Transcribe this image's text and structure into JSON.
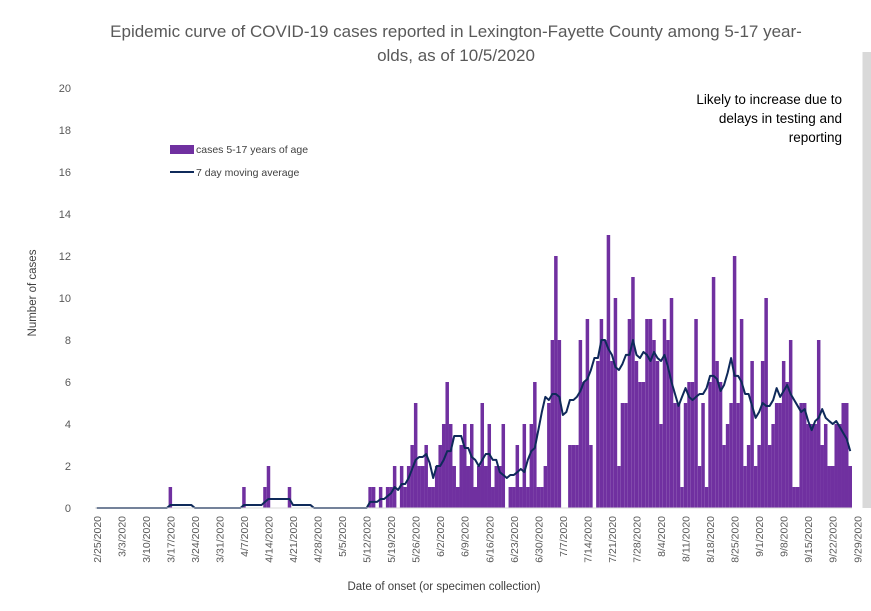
{
  "chart_data": {
    "type": "bar",
    "title_lines": [
      "Epidemic curve of COVID-19 cases reported in Lexington-Fayette County among 5-17 year-",
      "olds, as of 10/5/2020"
    ],
    "xlabel": "Date of onset (or specimen collection)",
    "ylabel": "Number of cases",
    "ylim": [
      0,
      20
    ],
    "yticks": [
      0,
      2,
      4,
      6,
      8,
      10,
      12,
      14,
      16,
      18,
      20
    ],
    "x_tick_labels": [
      "2/25/2020",
      "3/3/2020",
      "3/10/2020",
      "3/17/2020",
      "3/24/2020",
      "3/31/2020",
      "4/7/2020",
      "4/14/2020",
      "4/21/2020",
      "4/28/2020",
      "5/5/2020",
      "5/12/2020",
      "5/19/2020",
      "5/26/2020",
      "6/2/2020",
      "6/9/2020",
      "6/16/2020",
      "6/23/2020",
      "6/30/2020",
      "7/7/2020",
      "7/14/2020",
      "7/21/2020",
      "7/28/2020",
      "8/4/2020",
      "8/11/2020",
      "8/18/2020",
      "8/25/2020",
      "9/1/2020",
      "9/8/2020",
      "9/15/2020",
      "9/22/2020",
      "9/29/2020"
    ],
    "start_date": "2/25/2020",
    "grid": false,
    "legend_position": "upper-left",
    "colors": {
      "bars": "#7030a0",
      "line": "#0f2a5a",
      "shade": "#d9d9d9"
    },
    "shaded_region": {
      "from": "10/1/2020",
      "to": "10/5/2020"
    },
    "annotation": [
      "Likely to increase due to",
      "delays in testing and",
      "reporting"
    ],
    "series": [
      {
        "name": "cases 5-17 years of age",
        "kind": "bar",
        "values": [
          0,
          0,
          0,
          0,
          0,
          0,
          0,
          0,
          0,
          0,
          0,
          0,
          0,
          0,
          0,
          0,
          0,
          0,
          0,
          0,
          0,
          1,
          0,
          0,
          0,
          0,
          0,
          0,
          0,
          0,
          0,
          0,
          0,
          0,
          0,
          0,
          0,
          0,
          0,
          0,
          0,
          0,
          1,
          0,
          0,
          0,
          0,
          0,
          1,
          2,
          0,
          0,
          0,
          0,
          0,
          1,
          0,
          0,
          0,
          0,
          0,
          0,
          0,
          0,
          0,
          0,
          0,
          0,
          0,
          0,
          0,
          0,
          0,
          0,
          0,
          0,
          0,
          0,
          1,
          1,
          0,
          1,
          0,
          1,
          1,
          2,
          0,
          2,
          1,
          2,
          3,
          5,
          2,
          2,
          3,
          1,
          1,
          2,
          3,
          4,
          6,
          4,
          2,
          1,
          3,
          4,
          2,
          4,
          1,
          2,
          5,
          2,
          4,
          1,
          2,
          2,
          4,
          0,
          1,
          1,
          3,
          1,
          4,
          1,
          4,
          6,
          1,
          1,
          2,
          5,
          8,
          12,
          8,
          0,
          0,
          3,
          3,
          3,
          8,
          6,
          9,
          3,
          0,
          7,
          9,
          8,
          13,
          7,
          10,
          2,
          5,
          5,
          9,
          11,
          7,
          6,
          6,
          9,
          9,
          8,
          7,
          4,
          9,
          8,
          10,
          5,
          5,
          1,
          5,
          6,
          6,
          9,
          2,
          5,
          1,
          6,
          11,
          7,
          6,
          3,
          4,
          5,
          12,
          5,
          9,
          2,
          3,
          7,
          2,
          3,
          7,
          10,
          3,
          4,
          5,
          5,
          7,
          6,
          8,
          1,
          1,
          5,
          5,
          4,
          4,
          4,
          8,
          3,
          4,
          2,
          2,
          4,
          4,
          5,
          5,
          2
        ]
      },
      {
        "name": "7 day moving average",
        "kind": "line",
        "values": [
          0,
          0,
          0,
          0,
          0,
          0,
          0,
          0,
          0,
          0,
          0,
          0,
          0,
          0,
          0,
          0,
          0,
          0,
          0,
          0,
          0,
          0.14,
          0.14,
          0.14,
          0.14,
          0.14,
          0.14,
          0.14,
          0,
          0,
          0,
          0,
          0,
          0,
          0,
          0,
          0,
          0,
          0,
          0,
          0,
          0,
          0.14,
          0.14,
          0.14,
          0.14,
          0.14,
          0.14,
          0.29,
          0.43,
          0.43,
          0.43,
          0.43,
          0.43,
          0.43,
          0.43,
          0.14,
          0.14,
          0.14,
          0.14,
          0.14,
          0.14,
          0,
          0,
          0,
          0,
          0,
          0,
          0,
          0,
          0,
          0,
          0,
          0,
          0,
          0,
          0,
          0,
          0.29,
          0.29,
          0.29,
          0.43,
          0.43,
          0.57,
          0.71,
          1.0,
          0.86,
          1.14,
          1.14,
          1.43,
          1.86,
          2.29,
          2.43,
          2.43,
          2.57,
          2.14,
          1.43,
          2.0,
          2.0,
          2.29,
          2.71,
          2.71,
          3.43,
          3.43,
          3.43,
          2.86,
          2.86,
          2.43,
          2.29,
          2.0,
          2.29,
          2.57,
          2.57,
          2.29,
          2.29,
          1.71,
          1.57,
          1.43,
          1.57,
          1.57,
          1.71,
          1.86,
          1.71,
          2.29,
          2.71,
          2.86,
          3.71,
          4.57,
          5.29,
          5.14,
          5.43,
          5.43,
          5.29,
          4.43,
          4.57,
          5.14,
          5.14,
          5.29,
          5.57,
          6.0,
          6.14,
          6.57,
          7.14,
          7.14,
          8.0,
          8.0,
          7.57,
          7.29,
          6.71,
          6.57,
          6.86,
          7.29,
          7.29,
          8.0,
          7.29,
          7.14,
          7.43,
          7.29,
          7.0,
          7.43,
          7.14,
          7.0,
          7.29,
          6.71,
          6.0,
          5.43,
          4.86,
          5.29,
          5.71,
          5.29,
          5.14,
          5.29,
          5.43,
          5.43,
          5.71,
          6.29,
          6.29,
          6.14,
          5.57,
          5.86,
          6.43,
          7.14,
          6.29,
          6.29,
          6.0,
          5.43,
          5.43,
          4.86,
          4.29,
          4.57,
          5.0,
          4.86,
          4.86,
          5.14,
          5.71,
          5.29,
          5.57,
          5.86,
          5.43,
          5.14,
          4.86,
          4.57,
          4.71,
          4.14,
          3.71,
          4.14,
          4.29,
          4.71,
          4.29,
          4.14,
          4.0,
          4.14,
          3.86,
          3.57,
          3.29,
          2.71
        ]
      }
    ]
  }
}
